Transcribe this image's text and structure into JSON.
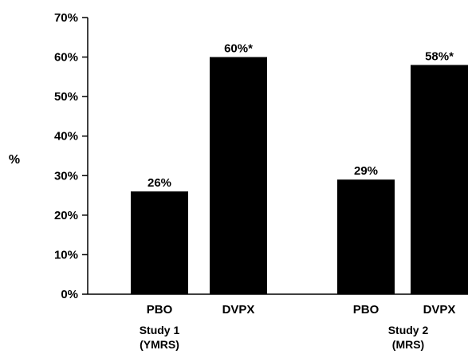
{
  "chart_data": {
    "type": "bar",
    "title": "",
    "xlabel": "",
    "ylabel": "%",
    "ylim": [
      0,
      70
    ],
    "yticks": [
      "0%",
      "10%",
      "20%",
      "30%",
      "40%",
      "50%",
      "60%",
      "70%"
    ],
    "grid": false,
    "legend": "none",
    "bar_color": "#000000",
    "groups": [
      {
        "line1": "Study 1",
        "line2": "(YMRS)",
        "bars": [
          {
            "category": "PBO",
            "value": 26,
            "label": "26%"
          },
          {
            "category": "DVPX",
            "value": 60,
            "label": "60%*"
          }
        ]
      },
      {
        "line1": "Study 2",
        "line2": "(MRS)",
        "bars": [
          {
            "category": "PBO",
            "value": 29,
            "label": "29%"
          },
          {
            "category": "DVPX",
            "value": 58,
            "label": "58%*"
          }
        ]
      }
    ]
  }
}
